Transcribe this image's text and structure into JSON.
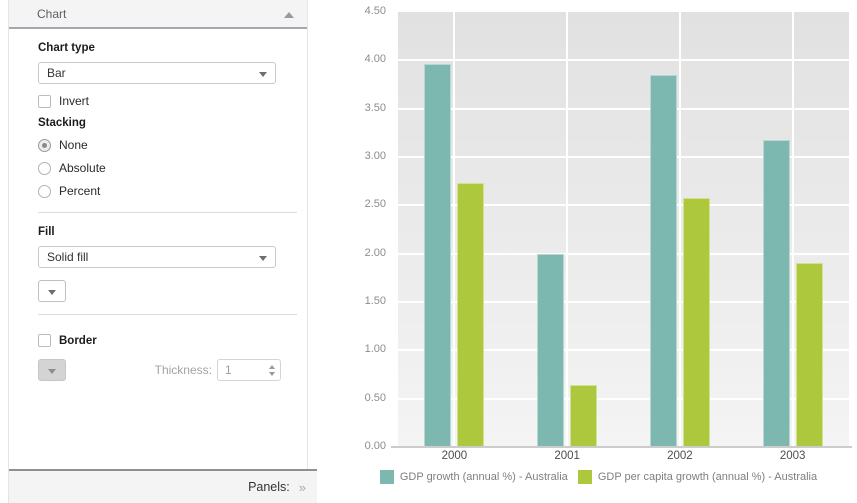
{
  "sidebar": {
    "header": {
      "title": "Chart"
    },
    "chart_type": {
      "label": "Chart type",
      "value": "Bar"
    },
    "invert": {
      "label": "Invert",
      "checked": false
    },
    "stacking": {
      "label": "Stacking",
      "options": [
        {
          "label": "None",
          "selected": true
        },
        {
          "label": "Absolute",
          "selected": false
        },
        {
          "label": "Percent",
          "selected": false
        }
      ]
    },
    "fill": {
      "label": "Fill",
      "value": "Solid fill"
    },
    "border": {
      "label": "Border",
      "checked": false,
      "thickness_label": "Thickness:",
      "thickness_value": "1"
    },
    "footer": {
      "label": "Panels:",
      "expand_icon": "»"
    }
  },
  "chart_data": {
    "type": "bar",
    "categories": [
      "2000",
      "2001",
      "2002",
      "2003"
    ],
    "series": [
      {
        "name": "GDP growth (annual %) - Australia",
        "color": "#7cb7b0",
        "values": [
          3.96,
          2.0,
          3.85,
          3.18
        ]
      },
      {
        "name": "GDP per capita growth (annual %) - Australia",
        "color": "#aec83d",
        "values": [
          2.73,
          0.64,
          2.58,
          1.9
        ]
      }
    ],
    "ylim": [
      0,
      4.5
    ],
    "ytick_step": 0.5,
    "ytick_labels": [
      "0.00",
      "0.50",
      "1.00",
      "1.50",
      "2.00",
      "2.50",
      "3.00",
      "3.50",
      "4.00",
      "4.50"
    ],
    "grid": true,
    "legend_position": "bottom"
  }
}
